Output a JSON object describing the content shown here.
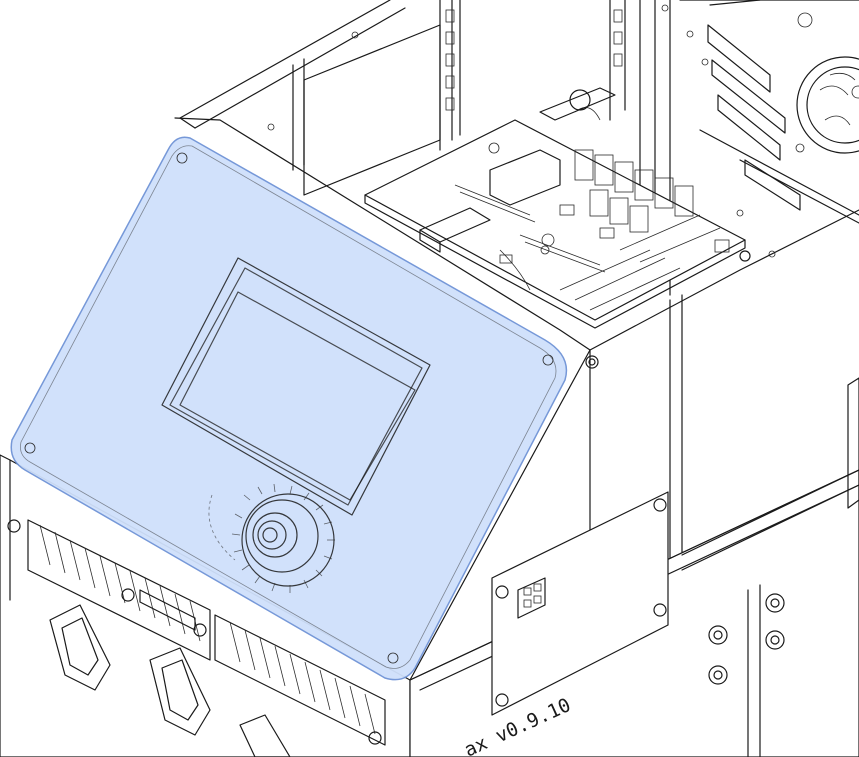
{
  "drawing": {
    "version_label": "ax v0.9.10"
  },
  "colors": {
    "panel_highlight": "#cfe0fb",
    "panel_highlight_stroke": "#6f93d6",
    "line": "#1a1a1a",
    "background": "#ffffff"
  },
  "highlight": {
    "target": "front-display-panel"
  }
}
